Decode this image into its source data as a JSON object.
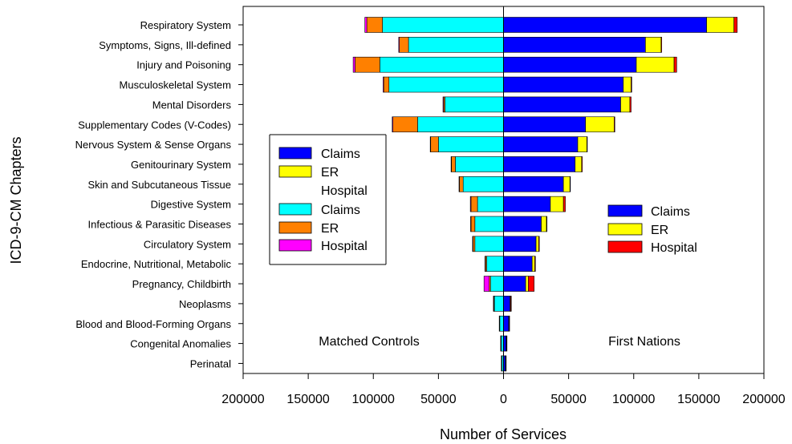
{
  "chart_data": {
    "type": "bar",
    "orientation": "horizontal-diverging",
    "ylabel": "ICD-9-CM Chapters",
    "xlabel": "Number of Services",
    "xlim": [
      -200000,
      200000
    ],
    "xticks": [
      -200000,
      -150000,
      -100000,
      -50000,
      0,
      50000,
      100000,
      150000,
      200000
    ],
    "xtick_labels": [
      "200000",
      "150000",
      "100000",
      "50000",
      "0",
      "50000",
      "100000",
      "150000",
      "200000"
    ],
    "grid": false,
    "categories": [
      "Respiratory System",
      "Symptoms, Signs, Ill-defined",
      "Injury and Poisoning",
      "Musculoskeletal System ",
      "Mental Disorders",
      "Supplementary Codes (V-Codes) ",
      "Nervous System & Sense Organs",
      "Genitourinary System",
      "Skin and Subcutaneous Tissue",
      "Digestive System",
      "Infectious & Parasitic Diseases",
      "Circulatory System",
      "Endocrine, Nutritional, Metabolic ",
      "Pregnancy, Childbirth",
      "Neoplasms",
      "Blood and Blood-Forming Organs",
      "Congenital Anomalies",
      "Perinatal "
    ],
    "groups": [
      {
        "name": "Matched Controls",
        "side": "left",
        "series": [
          {
            "name": "Claims",
            "color": "#00ffff",
            "values": [
              93000,
              73000,
              95000,
              88000,
              45000,
              66000,
              50000,
              37000,
              31000,
              20000,
              22000,
              22000,
              13000,
              10000,
              7000,
              3000,
              2000,
              1500
            ]
          },
          {
            "name": "ER",
            "color": "#ff8000",
            "values": [
              12000,
              7000,
              19000,
              4000,
              1000,
              19000,
              6000,
              3000,
              3000,
              5000,
              3000,
              1500,
              1000,
              1000,
              500,
              200,
              100,
              100
            ]
          },
          {
            "name": "Hospital",
            "color": "#ff00ff",
            "values": [
              1500,
              500,
              1500,
              500,
              500,
              500,
              300,
              300,
              200,
              500,
              300,
              300,
              300,
              4000,
              300,
              100,
              100,
              100
            ]
          }
        ]
      },
      {
        "name": "First Nations",
        "side": "right",
        "series": [
          {
            "name": "Claims",
            "color": "#0000ff",
            "values": [
              156000,
              109000,
              102000,
              92000,
              90000,
              63000,
              57000,
              55000,
              46000,
              36000,
              29000,
              25000,
              22000,
              17000,
              5000,
              4000,
              2000,
              1500
            ]
          },
          {
            "name": "ER",
            "color": "#ffff00",
            "values": [
              21000,
              12000,
              29000,
              6000,
              7000,
              22000,
              7000,
              5000,
              5000,
              10000,
              4000,
              2000,
              2000,
              2000,
              500,
              300,
              300,
              200
            ]
          },
          {
            "name": "Hospital",
            "color": "#ff0000",
            "values": [
              2500,
              500,
              2000,
              500,
              1000,
              500,
              300,
              500,
              300,
              1500,
              300,
              500,
              500,
              4500,
              500,
              100,
              100,
              100
            ]
          }
        ]
      }
    ],
    "legend_left": {
      "placement": "left-middle",
      "entries": [
        {
          "label": "Claims",
          "color": "#0000ff"
        },
        {
          "label": "ER",
          "color": "#ffff00"
        },
        {
          "label": "Hospital",
          "color": null
        },
        {
          "label": "Claims",
          "color": "#00ffff"
        },
        {
          "label": "ER",
          "color": "#ff8000"
        },
        {
          "label": "Hospital",
          "color": "#ff00ff"
        }
      ]
    },
    "legend_right": {
      "placement": "right-middle",
      "entries": [
        {
          "label": "Claims",
          "color": "#0000ff"
        },
        {
          "label": "ER",
          "color": "#ffff00"
        },
        {
          "label": "Hospital",
          "color": "#ff0000"
        }
      ]
    },
    "annotations": {
      "left": "Matched Controls",
      "right": "First Nations"
    }
  }
}
